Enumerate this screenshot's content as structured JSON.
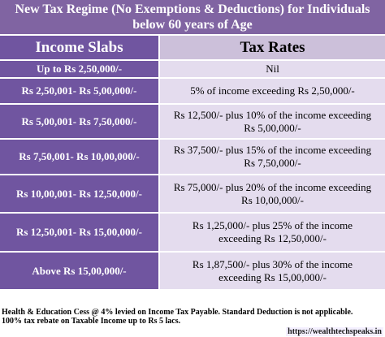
{
  "title": {
    "line1": "New Tax Regime (No Exemptions & Deductions) for Individuals",
    "line2": "below 60 years of Age"
  },
  "table": {
    "headers": [
      "Income Slabs",
      "Tax Rates"
    ],
    "rows": [
      {
        "slab": "Up to Rs 2,50,000/-",
        "rate": [
          "Nil"
        ]
      },
      {
        "slab": "Rs 2,50,001- Rs 5,00,000/-",
        "rate": [
          "5% of income exceeding Rs 2,50,000/-"
        ]
      },
      {
        "slab": "Rs 5,00,001- Rs 7,50,000/-",
        "rate": [
          "Rs 12,500/- plus 10% of the income exceeding",
          "Rs 5,00,000/-"
        ]
      },
      {
        "slab": "Rs 7,50,001- Rs 10,00,000/-",
        "rate": [
          "Rs 37,500/- plus 15% of the income exceeding",
          "Rs 7,50,000/-"
        ]
      },
      {
        "slab": "Rs 10,00,001- Rs 12,50,000/-",
        "rate": [
          "Rs 75,000/- plus 20% of the income exceeding",
          "Rs 10,00,000/-"
        ]
      },
      {
        "slab": "Rs 12,50,001- Rs 15,00,000/-",
        "rate": [
          "Rs 1,25,000/- plus 25% of the income",
          "exceeding Rs 12,50,000/-"
        ]
      },
      {
        "slab": "Above Rs 15,00,000/-",
        "rate": [
          "Rs 1,87,500/- plus 30% of the income",
          "exceeding Rs 15,00,000/-"
        ]
      }
    ]
  },
  "footer": {
    "line1": "Health & Education Cess @ 4% levied on Income Tax Payable. Standard Deduction is not applicable.",
    "line2": "100% tax rebate on Taxable Income up to Rs 5 lacs."
  },
  "website": "https://wealthtechspeaks.in",
  "colors": {
    "header_purple": "#8064a2",
    "slab_purple": "#7055a0",
    "rate_lavender": "#e4dcee",
    "header_lavender": "#ccc0da"
  }
}
